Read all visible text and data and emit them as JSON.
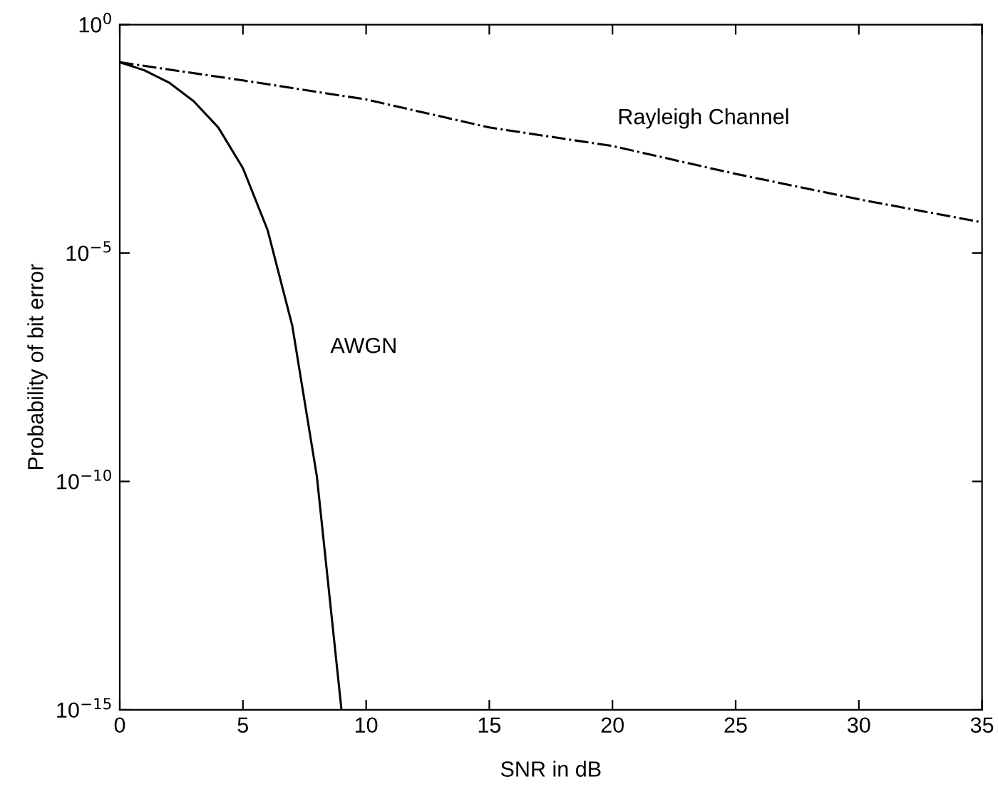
{
  "chart_data": {
    "type": "line",
    "xlabel": "SNR in dB",
    "ylabel": "Probability of bit error",
    "log": "y",
    "xlim": [
      0,
      35
    ],
    "xticks": [
      0,
      5,
      10,
      15,
      20,
      25,
      30,
      35
    ],
    "ylim": [
      1e-15,
      1
    ],
    "yticks": [
      {
        "value": 1,
        "label": "10$^{0}$"
      },
      {
        "value": 1e-05,
        "label": "10$^{−5}$"
      },
      {
        "value": 1e-10,
        "label": "10$^{−10}$"
      },
      {
        "value": 1e-15,
        "label": "10$^{−15}$"
      }
    ],
    "grid": false,
    "legend": false,
    "marker": "none",
    "series": [
      {
        "name": "AWGN",
        "color": "#000000",
        "line_style": "solid",
        "x": [
          0,
          1,
          2,
          3,
          4,
          5,
          6,
          7,
          8,
          9
        ],
        "values": [
          0.15,
          0.1,
          0.054,
          0.021,
          0.0056,
          0.00072,
          3.2e-05,
          2.6e-07,
          1.3e-10,
          1e-15
        ]
      },
      {
        "name": "Rayleigh Channel",
        "color": "#000000",
        "line_style": "dashdot",
        "x": [
          0,
          5,
          10,
          15,
          20,
          25,
          30,
          35
        ],
        "values": [
          0.15,
          0.06,
          0.023,
          0.0056,
          0.0022,
          0.00054,
          0.00015,
          4.7e-05
        ]
      }
    ]
  }
}
